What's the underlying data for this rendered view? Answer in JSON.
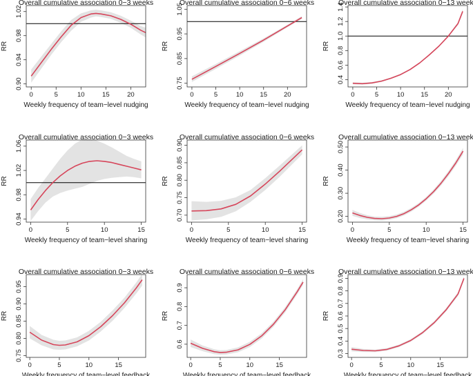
{
  "chart_data": [
    {
      "type": "line",
      "title": "Overall cumulative association 0−3 weeks",
      "xlabel": "Weekly frequency of team−level nudging",
      "ylabel": "RR",
      "xlim": [
        -1,
        23
      ],
      "ylim": [
        0.895,
        1.03
      ],
      "xticks": [
        0,
        5,
        10,
        15,
        20
      ],
      "yticks": [
        0.9,
        0.94,
        0.98,
        1.02
      ],
      "ytick_labels": [
        "0.90",
        "0.94",
        "0.98",
        "1.02"
      ],
      "reference_line": 1.0,
      "x": [
        0,
        2,
        4,
        6,
        8,
        10,
        12,
        13,
        14,
        16,
        18,
        20,
        22,
        23
      ],
      "y": [
        0.913,
        0.935,
        0.957,
        0.978,
        0.997,
        1.01,
        1.016,
        1.017,
        1.016,
        1.013,
        1.007,
        0.999,
        0.989,
        0.985
      ],
      "lower": [
        0.902,
        0.925,
        0.948,
        0.969,
        0.988,
        1.003,
        1.01,
        1.012,
        1.011,
        1.008,
        1.001,
        0.993,
        0.982,
        0.977
      ],
      "upper": [
        0.924,
        0.945,
        0.966,
        0.987,
        1.006,
        1.017,
        1.022,
        1.023,
        1.022,
        1.019,
        1.013,
        1.005,
        0.996,
        0.993
      ]
    },
    {
      "type": "line",
      "title": "Overall cumulative association 0−6 weeks",
      "xlabel": "Weekly frequency of team−level nudging",
      "ylabel": "RR",
      "xlim": [
        -1,
        24
      ],
      "ylim": [
        0.735,
        1.065
      ],
      "xticks": [
        0,
        5,
        10,
        15,
        20
      ],
      "yticks": [
        0.75,
        0.85,
        0.95,
        1.05
      ],
      "ytick_labels": [
        "0.75",
        "0.85",
        "0.95",
        "1.05"
      ],
      "reference_line": 1.0,
      "x": [
        0,
        5,
        10,
        15,
        20,
        23
      ],
      "y": [
        0.766,
        0.818,
        0.871,
        0.925,
        0.982,
        1.016
      ],
      "lower": [
        0.755,
        0.808,
        0.862,
        0.918,
        0.977,
        1.011
      ],
      "upper": [
        0.778,
        0.828,
        0.88,
        0.932,
        0.987,
        1.022
      ]
    },
    {
      "type": "line",
      "title": "Overall cumulative association 0−13 weeks",
      "xlabel": "Weekly frequency of team−level nudging",
      "ylabel": "RR",
      "xlim": [
        -1,
        24
      ],
      "ylim": [
        0.3,
        1.42
      ],
      "xticks": [
        0,
        5,
        10,
        15,
        20
      ],
      "yticks": [
        0.4,
        0.6,
        0.8,
        1.0,
        1.2,
        1.4
      ],
      "ytick_labels": [
        "0.4",
        "0.6",
        "0.8",
        "1.0",
        "1.2",
        "1.4"
      ],
      "reference_line": 1.0,
      "x": [
        0,
        2,
        4,
        6,
        8,
        10,
        12,
        14,
        16,
        18,
        20,
        22,
        23
      ],
      "y": [
        0.35,
        0.345,
        0.355,
        0.38,
        0.42,
        0.47,
        0.54,
        0.63,
        0.74,
        0.86,
        1.0,
        1.17,
        1.34
      ],
      "lower": [
        0.335,
        0.332,
        0.343,
        0.369,
        0.41,
        0.46,
        0.53,
        0.62,
        0.73,
        0.85,
        0.99,
        1.15,
        1.31
      ],
      "upper": [
        0.365,
        0.358,
        0.367,
        0.391,
        0.43,
        0.48,
        0.55,
        0.64,
        0.75,
        0.87,
        1.01,
        1.19,
        1.37
      ]
    },
    {
      "type": "line",
      "title": "Overall cumulative association 0−3 weeks",
      "xlabel": "Weekly frequency of team−level sharing",
      "ylabel": "RR",
      "xlim": [
        -0.6,
        15.6
      ],
      "ylim": [
        0.935,
        1.07
      ],
      "xticks": [
        0,
        5,
        10,
        15
      ],
      "yticks": [
        0.94,
        0.98,
        1.02,
        1.06
      ],
      "ytick_labels": [
        "0.94",
        "0.98",
        "1.02",
        "1.06"
      ],
      "reference_line": 1.0,
      "x": [
        0,
        1,
        2,
        3,
        4,
        5,
        6,
        7,
        8,
        9,
        10,
        11,
        12,
        13,
        14,
        15
      ],
      "y": [
        0.955,
        0.972,
        0.987,
        1.0,
        1.011,
        1.02,
        1.027,
        1.032,
        1.035,
        1.036,
        1.035,
        1.033,
        1.03,
        1.027,
        1.024,
        1.021
      ],
      "lower": [
        0.937,
        0.953,
        0.967,
        0.977,
        0.983,
        0.987,
        0.99,
        0.993,
        0.998,
        1.003,
        1.006,
        1.008,
        1.009,
        1.01,
        1.009,
        1.007
      ],
      "upper": [
        0.973,
        0.991,
        1.007,
        1.023,
        1.039,
        1.053,
        1.064,
        1.071,
        1.072,
        1.069,
        1.064,
        1.058,
        1.051,
        1.044,
        1.039,
        1.035
      ]
    },
    {
      "type": "line",
      "title": "Overall cumulative association 0−6 weeks",
      "xlabel": "Weekly frequency of team−level sharing",
      "ylabel": "RR",
      "xlim": [
        -0.6,
        15.6
      ],
      "ylim": [
        0.68,
        0.915
      ],
      "xticks": [
        0,
        5,
        10,
        15
      ],
      "yticks": [
        0.7,
        0.75,
        0.8,
        0.85,
        0.9
      ],
      "ytick_labels": [
        "0.70",
        "0.75",
        "0.80",
        "0.85",
        "0.90"
      ],
      "x": [
        0,
        2,
        4,
        6,
        8,
        10,
        12,
        14,
        15
      ],
      "y": [
        0.712,
        0.713,
        0.718,
        0.731,
        0.755,
        0.789,
        0.827,
        0.867,
        0.887
      ],
      "lower": [
        0.685,
        0.688,
        0.695,
        0.711,
        0.738,
        0.772,
        0.811,
        0.853,
        0.874
      ],
      "upper": [
        0.74,
        0.738,
        0.741,
        0.751,
        0.772,
        0.806,
        0.843,
        0.881,
        0.9
      ]
    },
    {
      "type": "line",
      "title": "Overall cumulative association 0−13 weeks",
      "xlabel": "Weekly frequency of team−level sharing",
      "ylabel": "RR",
      "xlim": [
        -0.6,
        15.6
      ],
      "ylim": [
        0.175,
        0.53
      ],
      "xticks": [
        0,
        5,
        10,
        15
      ],
      "yticks": [
        0.2,
        0.3,
        0.4,
        0.5
      ],
      "ytick_labels": [
        "0.20",
        "0.30",
        "0.40",
        "0.50"
      ],
      "x": [
        0,
        1,
        2,
        3,
        4,
        5,
        6,
        7,
        8,
        9,
        10,
        11,
        12,
        13,
        14,
        15
      ],
      "y": [
        0.215,
        0.204,
        0.196,
        0.191,
        0.19,
        0.193,
        0.2,
        0.212,
        0.229,
        0.25,
        0.276,
        0.307,
        0.343,
        0.384,
        0.43,
        0.482
      ],
      "lower": [
        0.202,
        0.193,
        0.187,
        0.183,
        0.182,
        0.185,
        0.192,
        0.204,
        0.221,
        0.242,
        0.268,
        0.298,
        0.333,
        0.373,
        0.418,
        0.468
      ],
      "upper": [
        0.228,
        0.215,
        0.205,
        0.199,
        0.198,
        0.201,
        0.208,
        0.22,
        0.237,
        0.258,
        0.284,
        0.316,
        0.353,
        0.395,
        0.442,
        0.496
      ]
    },
    {
      "type": "line",
      "title": "Overall cumulative association 0−3 weeks",
      "xlabel": "Weekly frequency of team−level feedback",
      "ylabel": "RR",
      "xlim": [
        -0.6,
        19.6
      ],
      "ylim": [
        0.745,
        0.985
      ],
      "xticks": [
        0,
        5,
        10,
        15
      ],
      "yticks": [
        0.75,
        0.8,
        0.85,
        0.9,
        0.95
      ],
      "ytick_labels": [
        "0.75",
        "0.80",
        "0.85",
        "0.90",
        "0.95"
      ],
      "x": [
        0,
        2,
        4,
        5,
        6,
        8,
        10,
        12,
        14,
        16,
        18,
        19
      ],
      "y": [
        0.818,
        0.795,
        0.782,
        0.78,
        0.781,
        0.79,
        0.808,
        0.834,
        0.866,
        0.903,
        0.946,
        0.97
      ],
      "lower": [
        0.8,
        0.78,
        0.768,
        0.767,
        0.768,
        0.777,
        0.794,
        0.82,
        0.851,
        0.888,
        0.93,
        0.953
      ],
      "upper": [
        0.836,
        0.81,
        0.796,
        0.793,
        0.794,
        0.803,
        0.822,
        0.848,
        0.881,
        0.918,
        0.962,
        0.987
      ]
    },
    {
      "type": "line",
      "title": "Overall cumulative association 0−6 weeks",
      "xlabel": "Weekly frequency of team−level feedback",
      "ylabel": "RR",
      "xlim": [
        -0.6,
        19.6
      ],
      "ylim": [
        0.53,
        0.97
      ],
      "xticks": [
        0,
        5,
        10,
        15
      ],
      "yticks": [
        0.6,
        0.7,
        0.8,
        0.9
      ],
      "ytick_labels": [
        "0.6",
        "0.7",
        "0.8",
        "0.9"
      ],
      "x": [
        0,
        2,
        4,
        5,
        6,
        8,
        10,
        12,
        14,
        16,
        18,
        19
      ],
      "y": [
        0.605,
        0.578,
        0.56,
        0.556,
        0.557,
        0.57,
        0.599,
        0.644,
        0.706,
        0.784,
        0.878,
        0.93
      ],
      "lower": [
        0.585,
        0.563,
        0.547,
        0.544,
        0.545,
        0.557,
        0.585,
        0.63,
        0.692,
        0.77,
        0.864,
        0.915
      ],
      "upper": [
        0.625,
        0.593,
        0.573,
        0.568,
        0.569,
        0.583,
        0.613,
        0.658,
        0.72,
        0.798,
        0.892,
        0.945
      ]
    },
    {
      "type": "line",
      "title": "Overall cumulative association 0−13 weeks",
      "xlabel": "Weekly frequency of team−level feedback",
      "ylabel": "RR",
      "xlim": [
        -0.6,
        19.6
      ],
      "ylim": [
        0.27,
        0.93
      ],
      "xticks": [
        0,
        5,
        10,
        15
      ],
      "yticks": [
        0.3,
        0.4,
        0.5,
        0.6,
        0.7,
        0.8,
        0.9
      ],
      "ytick_labels": [
        "0.3",
        "0.4",
        "0.5",
        "0.6",
        "0.7",
        "0.8",
        "0.9"
      ],
      "x": [
        0,
        2,
        4,
        6,
        8,
        10,
        12,
        14,
        16,
        18,
        19
      ],
      "y": [
        0.335,
        0.325,
        0.322,
        0.334,
        0.362,
        0.405,
        0.467,
        0.548,
        0.65,
        0.775,
        0.9
      ],
      "lower": [
        0.318,
        0.313,
        0.312,
        0.324,
        0.352,
        0.395,
        0.456,
        0.536,
        0.637,
        0.76,
        0.883
      ],
      "upper": [
        0.352,
        0.337,
        0.332,
        0.344,
        0.372,
        0.415,
        0.478,
        0.56,
        0.663,
        0.79,
        0.917
      ]
    }
  ],
  "colors": {
    "line": "#d6455a",
    "band": "#e3e3e3",
    "axis": "#333333",
    "reference": "#000000"
  }
}
